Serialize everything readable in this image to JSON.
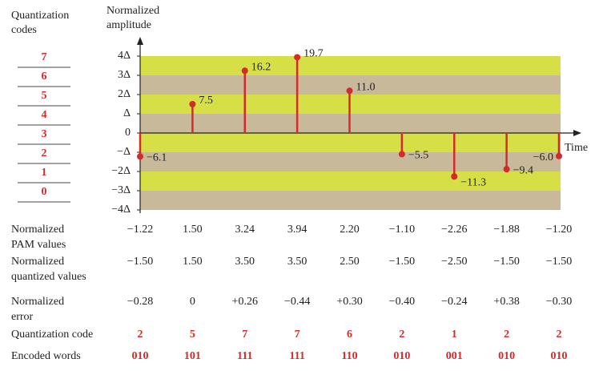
{
  "chart_data": {
    "type": "stem",
    "y_label": [
      "Normalized",
      "amplitude"
    ],
    "x_label": "Time",
    "codes_label": [
      "Quantization",
      "codes"
    ],
    "codes": [
      "7",
      "6",
      "5",
      "4",
      "3",
      "2",
      "1",
      "0"
    ],
    "categories": [
      null,
      null,
      null,
      null,
      null,
      null,
      null,
      null,
      null
    ],
    "ylim": [
      -4,
      4
    ],
    "yticks": [
      {
        "value": -4,
        "label": "−4Δ"
      },
      {
        "value": -3,
        "label": "−3Δ"
      },
      {
        "value": -2,
        "label": "−2Δ"
      },
      {
        "value": -1,
        "label": "−Δ"
      },
      0,
      {
        "value": 1,
        "label": "Δ"
      },
      {
        "value": 2,
        "label": "2Δ"
      },
      {
        "value": 3,
        "label": "3Δ"
      },
      {
        "value": 4,
        "label": "4Δ"
      }
    ],
    "band_colors": [
      "#c9b99b",
      "#d6df45"
    ],
    "color": "#d42a2a",
    "values": [
      -1.22,
      1.5,
      3.24,
      3.94,
      2.2,
      -1.1,
      -2.26,
      -1.88,
      -1.2
    ],
    "value_labels": [
      "−6.1",
      "7.5",
      "16.2",
      "19.7",
      "11.0",
      "−5.5",
      "−11.3",
      "−9.4",
      "−6.0"
    ]
  },
  "table": {
    "rows": [
      {
        "label": [
          "Normalized",
          "PAM values"
        ],
        "cells": [
          "−1.22",
          "1.50",
          "3.24",
          "3.94",
          "2.20",
          "−1.10",
          "−2.26",
          "−1.88",
          "−1.20"
        ]
      },
      {
        "label": [
          "Normalized",
          "quantized values"
        ],
        "cells": [
          "−1.50",
          "1.50",
          "3.50",
          "3.50",
          "2.50",
          "−1.50",
          "−2.50",
          "−1.50",
          "−1.50"
        ]
      },
      {
        "label": [
          "Normalized",
          "error"
        ],
        "cells": [
          "−0.28",
          "0",
          "+0.26",
          "−0.44",
          "+0.30",
          "−0.40",
          "−0.24",
          "+0.38",
          "−0.30"
        ]
      },
      {
        "label": [
          "Quantization code"
        ],
        "cells": [
          "2",
          "5",
          "7",
          "7",
          "6",
          "2",
          "1",
          "2",
          "2"
        ]
      },
      {
        "label": [
          "Encoded words"
        ],
        "cells": [
          "010",
          "101",
          "111",
          "111",
          "110",
          "010",
          "001",
          "010",
          "010"
        ]
      }
    ]
  }
}
